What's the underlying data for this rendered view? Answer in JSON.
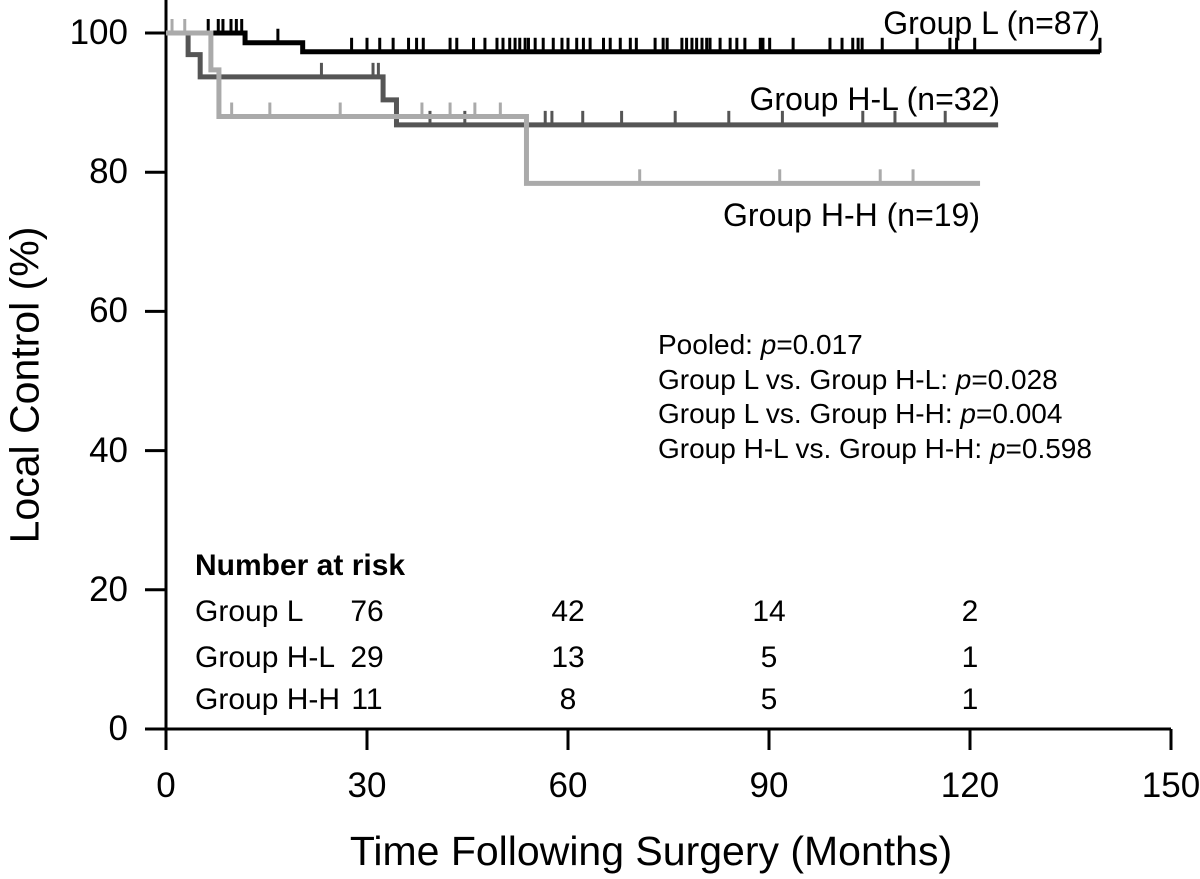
{
  "figure": {
    "background": "#ffffff",
    "axis_color": "#000000"
  },
  "chart_data": {
    "type": "line",
    "subtype": "kaplan-meier-step",
    "title": "",
    "xlabel": "Time Following Surgery (Months)",
    "ylabel": "Local Control (%)",
    "xlim": [
      0,
      150
    ],
    "ylim": [
      0,
      100
    ],
    "x_ticks": [
      0,
      30,
      60,
      90,
      120,
      150
    ],
    "y_ticks": [
      0,
      20,
      40,
      60,
      80,
      100
    ],
    "grid": false,
    "legend_position": "curve-end-labels",
    "series": [
      {
        "name": "Group L",
        "label": "Group L (n=87)",
        "n": 87,
        "color": "#000000",
        "steps": [
          [
            0,
            100
          ],
          [
            11.8,
            98.6
          ],
          [
            20.4,
            97.3
          ]
        ],
        "end_month": 139.4,
        "censor_months": [
          6.3,
          7.8,
          8.5,
          9.7,
          10.5,
          11.3,
          16.7,
          27.7,
          30,
          31.9,
          33.9,
          36.2,
          37.4,
          38.4,
          42.4,
          43.4,
          45.9,
          47.6,
          49.4,
          50.3,
          51.3,
          52.1,
          52.8,
          53.6,
          54.1,
          55.1,
          56.3,
          57.8,
          59.1,
          60,
          61.3,
          62.3,
          63.3,
          65.3,
          66.3,
          67.8,
          69.3,
          70.2,
          73,
          74.2,
          74.8,
          77,
          77.7,
          78.5,
          79.2,
          80,
          80.7,
          81.2,
          82.7,
          84.2,
          85.2,
          86.4,
          88.7,
          89.1,
          90.1,
          93.6,
          99.1,
          100.9,
          102.5,
          103.3,
          103.9,
          106.9,
          112.1,
          117,
          118,
          120.7,
          139.4
        ]
      },
      {
        "name": "Group H-L",
        "label": "Group H-L (n=32)",
        "n": 32,
        "color": "#555555",
        "steps": [
          [
            0,
            100
          ],
          [
            3.3,
            96.9
          ],
          [
            5.1,
            93.7
          ],
          [
            32.4,
            90.4
          ],
          [
            34.4,
            86.8
          ]
        ],
        "end_month": 124.2,
        "censor_months": [
          23.2,
          30.9,
          31.7,
          39.4,
          44.6,
          56.6,
          57.6,
          62.2,
          68,
          76,
          84,
          92,
          104,
          108.8,
          116.3
        ]
      },
      {
        "name": "Group H-H",
        "label": "Group H-H (n=19)",
        "n": 19,
        "color": "#aaaaaa",
        "steps": [
          [
            0,
            100
          ],
          [
            6.7,
            94.7
          ],
          [
            7.9,
            88.0
          ],
          [
            53.8,
            78.4
          ]
        ],
        "end_month": 121.5,
        "censor_months": [
          0.9,
          2.8,
          9.8,
          15.5,
          26,
          38.2,
          42.4,
          46.1,
          49.9,
          70.7,
          91.6,
          106.6,
          111.5
        ]
      }
    ]
  },
  "annotations": {
    "stats_lines": [
      {
        "prefix": "Pooled: ",
        "p_char": "p",
        "value": "=0.017"
      },
      {
        "prefix": "Group L vs. Group H-L: ",
        "p_char": "p",
        "value": "=0.028"
      },
      {
        "prefix": "Group L vs. Group H-H: ",
        "p_char": "p",
        "value": "=0.004"
      },
      {
        "prefix": "Group H-L vs. Group H-H: ",
        "p_char": "p",
        "value": "=0.598"
      }
    ]
  },
  "risk_table": {
    "header": "Number at risk",
    "time_points": [
      30,
      60,
      90,
      120
    ],
    "rows": [
      {
        "label": "Group L",
        "counts": [
          76,
          42,
          14,
          2
        ]
      },
      {
        "label": "Group H-L",
        "counts": [
          29,
          13,
          5,
          1
        ]
      },
      {
        "label": "Group H-H",
        "counts": [
          11,
          8,
          5,
          1
        ]
      }
    ]
  }
}
